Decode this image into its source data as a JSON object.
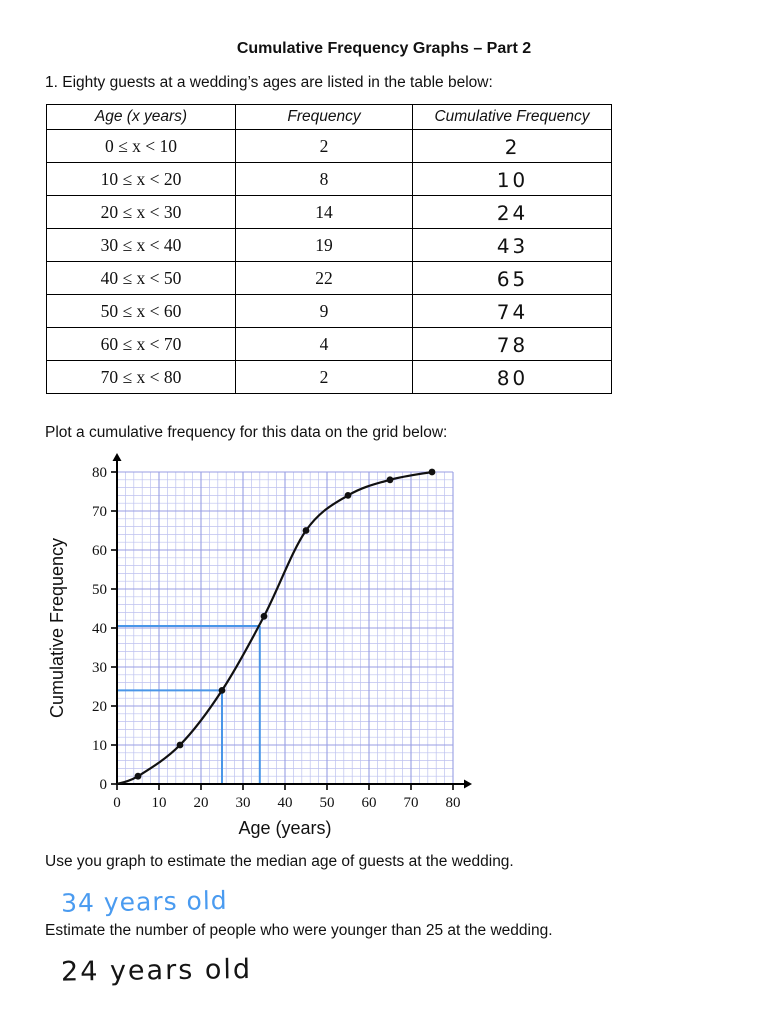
{
  "page": {
    "title": "Cumulative Frequency Graphs – Part 2",
    "question1": "1. Eighty guests at a wedding’s ages are listed in the table below:",
    "plot_instruction": "Plot a cumulative frequency for this data on the grid below:",
    "median_question": "Use you graph to estimate the median age of guests at the wedding.",
    "median_answer": "34 years old",
    "younger_question": "Estimate the number of people who were younger than 25 at the wedding.",
    "younger_answer": "24 years old"
  },
  "table": {
    "headers": [
      "Age (x years)",
      "Frequency",
      "Cumulative Frequency"
    ],
    "rows": [
      {
        "age": "0 ≤ x < 10",
        "frequency": "2",
        "cumulative": "2"
      },
      {
        "age": "10 ≤ x < 20",
        "frequency": "8",
        "cumulative": "10"
      },
      {
        "age": "20 ≤ x < 30",
        "frequency": "14",
        "cumulative": "24"
      },
      {
        "age": "30 ≤ x < 40",
        "frequency": "19",
        "cumulative": "43"
      },
      {
        "age": "40 ≤ x < 50",
        "frequency": "22",
        "cumulative": "65"
      },
      {
        "age": "50 ≤ x < 60",
        "frequency": "9",
        "cumulative": "74"
      },
      {
        "age": "60 ≤ x < 70",
        "frequency": "4",
        "cumulative": "78"
      },
      {
        "age": "70 ≤ x < 80",
        "frequency": "2",
        "cumulative": "80"
      }
    ]
  },
  "chart_data": {
    "type": "line",
    "title": "",
    "xlabel": "Age (years)",
    "ylabel": "Cumulative Frequency",
    "xlim": [
      0,
      80
    ],
    "ylim": [
      0,
      80
    ],
    "x_ticks": [
      0,
      10,
      20,
      30,
      40,
      50,
      60,
      70,
      80
    ],
    "y_ticks": [
      0,
      10,
      20,
      30,
      40,
      50,
      60,
      70,
      80
    ],
    "curve_color": "#111111",
    "points": [
      [
        0,
        0
      ],
      [
        5,
        2
      ],
      [
        15,
        10
      ],
      [
        25,
        24
      ],
      [
        35,
        43
      ],
      [
        45,
        65
      ],
      [
        55,
        74
      ],
      [
        65,
        78
      ],
      [
        75,
        80
      ]
    ],
    "marked_points": [
      [
        5,
        2
      ],
      [
        15,
        10
      ],
      [
        25,
        24
      ],
      [
        35,
        43
      ],
      [
        45,
        65
      ],
      [
        55,
        74
      ],
      [
        65,
        78
      ],
      [
        75,
        80
      ]
    ],
    "reading_lines": [
      {
        "purpose": "median",
        "y": 40.5,
        "x": 34,
        "color": "#4a96e8"
      },
      {
        "purpose": "younger-than-25",
        "y": 24,
        "x": 25,
        "color": "#4a96e8"
      }
    ],
    "grid": {
      "on": true,
      "minor_step": 2,
      "major_step": 10,
      "minor_color": "#bdc1ef",
      "major_color": "#989ee3"
    }
  }
}
